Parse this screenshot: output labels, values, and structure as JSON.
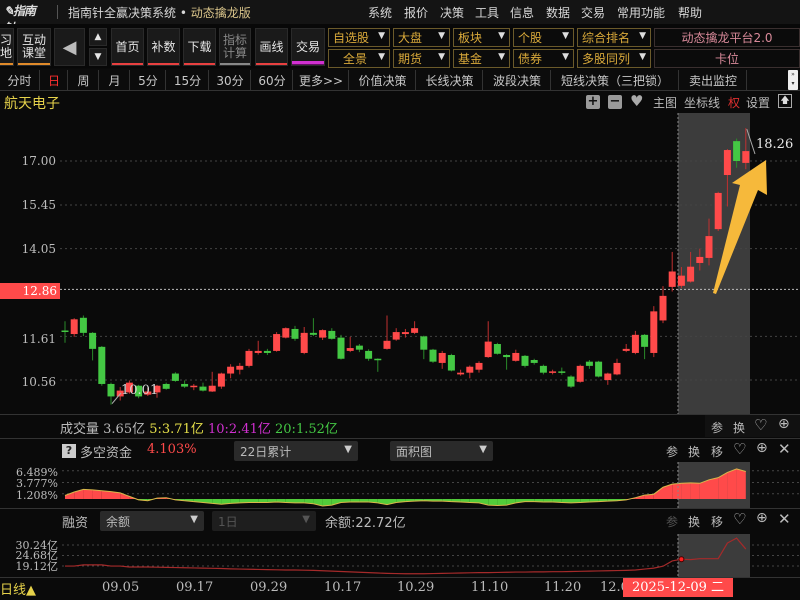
{
  "titlebar": {
    "logo": "指南针",
    "app": "指南针全赢决策系统 • ",
    "edition": "动态擒龙版",
    "menu": [
      "系统",
      "报价",
      "决策",
      "工具",
      "信息",
      "数据",
      "交易",
      "常用功能",
      "帮助"
    ]
  },
  "toolbar": {
    "buttons": [
      {
        "label": "习\n地"
      },
      {
        "label": "互动\n课堂"
      },
      {
        "label": "首页"
      },
      {
        "label": "补数"
      },
      {
        "label": "下载"
      },
      {
        "label": "指标\n计算"
      },
      {
        "label": "画线"
      },
      {
        "label": "交易"
      }
    ],
    "dropdowns_row1": [
      "自选股",
      "大盘",
      "板块",
      "个股",
      "综合排名"
    ],
    "dropdowns_row2": [
      "全景",
      "期货",
      "基金",
      "债券",
      "多股同列"
    ],
    "platform": "动态擒龙平台2.0",
    "kawei": "卡位"
  },
  "period_tabs": [
    {
      "label": "分时"
    },
    {
      "label": "日",
      "active": true
    },
    {
      "label": "周"
    },
    {
      "label": "月"
    },
    {
      "label": "5分"
    },
    {
      "label": "15分"
    },
    {
      "label": "30分"
    },
    {
      "label": "60分"
    },
    {
      "label": "更多>>"
    },
    {
      "label": "价值决策"
    },
    {
      "label": "长线决策"
    },
    {
      "label": "波段决策"
    },
    {
      "label": "短线决策（三把锁）"
    },
    {
      "label": "卖出监控"
    }
  ],
  "chart_header": {
    "stock_name": "航天电子",
    "main": "主图",
    "gridline": "坐标线",
    "rights": "权",
    "settings": "设置"
  },
  "volume": {
    "label": "成交量",
    "value": "3.65亿",
    "ma5": "5:3.71亿",
    "ma10": "10:2.41亿",
    "ma20": "20:1.52亿",
    "btn_param": "参",
    "btn_switch": "换"
  },
  "fund_flow": {
    "label": "多空资金",
    "value": "4.103%",
    "period": "22日累计",
    "style": "面积图",
    "btn_param": "参",
    "btn_switch": "换",
    "btn_move": "移",
    "axis": [
      "6.489%",
      "3.777%",
      "1.208%"
    ]
  },
  "margin": {
    "label": "融资",
    "type": "余额",
    "period": "1日",
    "balance": "余额:22.72亿",
    "btn_param": "参",
    "btn_switch": "换",
    "btn_move": "移",
    "axis": [
      "30.24亿",
      "24.68亿",
      "19.12亿"
    ]
  },
  "date_axis": {
    "period_label": "日线▲",
    "ticks": [
      "09.05",
      "09.17",
      "09.29",
      "10.17",
      "10.29",
      "11.10",
      "11.20",
      "12.01"
    ],
    "selected_date": "2025-12-09 二"
  },
  "colors": {
    "up": "#ff4a4a",
    "down": "#44c844",
    "accent_arrow": "#f6b93b",
    "fund_up": "#ff4a4a",
    "fund_down": "#52cc3a",
    "margin_line": "#a52a2a"
  },
  "chart_data": {
    "type": "candlestick",
    "scale": "log",
    "y_ticks": [
      "17.00",
      "15.45",
      "14.05",
      "11.61",
      "10.56"
    ],
    "current_price": "12.86",
    "high_label": "18.26",
    "low_label": "10.01",
    "ohlc": [
      [
        11.76,
        12.0,
        11.45,
        11.74
      ],
      [
        11.67,
        12.08,
        11.6,
        12.05
      ],
      [
        12.09,
        12.15,
        11.62,
        11.7
      ],
      [
        11.7,
        11.72,
        11.02,
        11.3
      ],
      [
        11.35,
        11.37,
        10.43,
        10.47
      ],
      [
        10.47,
        10.5,
        10.01,
        10.19
      ],
      [
        10.19,
        10.4,
        10.1,
        10.32
      ],
      [
        10.28,
        10.55,
        10.25,
        10.5
      ],
      [
        10.43,
        10.45,
        10.15,
        10.19
      ],
      [
        10.23,
        10.38,
        10.2,
        10.3
      ],
      [
        10.28,
        10.45,
        10.16,
        10.43
      ],
      [
        10.47,
        10.5,
        10.34,
        10.36
      ],
      [
        10.71,
        10.74,
        10.52,
        10.54
      ],
      [
        10.47,
        10.55,
        10.38,
        10.41
      ],
      [
        10.41,
        10.47,
        10.33,
        10.43
      ],
      [
        10.41,
        10.5,
        10.3,
        10.32
      ],
      [
        10.3,
        10.75,
        10.29,
        10.43
      ],
      [
        10.41,
        10.73,
        10.36,
        10.71
      ],
      [
        10.71,
        10.93,
        10.6,
        10.87
      ],
      [
        10.8,
        10.96,
        10.69,
        10.89
      ],
      [
        10.89,
        11.3,
        10.85,
        11.25
      ],
      [
        11.2,
        11.5,
        11.16,
        11.25
      ],
      [
        11.25,
        11.3,
        11.15,
        11.2
      ],
      [
        11.25,
        11.72,
        11.23,
        11.67
      ],
      [
        11.58,
        11.84,
        11.56,
        11.82
      ],
      [
        11.8,
        11.88,
        11.5,
        11.55
      ],
      [
        11.2,
        11.85,
        11.17,
        11.7
      ],
      [
        11.7,
        12.08,
        11.62,
        11.65
      ],
      [
        11.58,
        11.79,
        11.52,
        11.77
      ],
      [
        11.75,
        11.82,
        11.53,
        11.55
      ],
      [
        11.58,
        11.65,
        11.04,
        11.06
      ],
      [
        11.25,
        11.6,
        11.22,
        11.32
      ],
      [
        11.38,
        11.42,
        11.22,
        11.28
      ],
      [
        11.25,
        11.29,
        11.01,
        11.06
      ],
      [
        11.06,
        11.07,
        10.75,
        11.04
      ],
      [
        11.3,
        12.15,
        11.28,
        11.5
      ],
      [
        11.53,
        11.82,
        11.5,
        11.72
      ],
      [
        11.67,
        11.8,
        11.58,
        11.72
      ],
      [
        11.7,
        12.0,
        11.67,
        11.82
      ],
      [
        11.61,
        11.63,
        11.05,
        11.28
      ],
      [
        11.28,
        11.3,
        10.96,
        10.99
      ],
      [
        10.96,
        11.25,
        10.82,
        11.2
      ],
      [
        11.15,
        11.18,
        10.76,
        10.78
      ],
      [
        10.69,
        10.8,
        10.66,
        10.73
      ],
      [
        10.73,
        10.9,
        10.6,
        10.87
      ],
      [
        10.8,
        11.0,
        10.73,
        10.96
      ],
      [
        11.1,
        12.0,
        11.08,
        11.48
      ],
      [
        11.42,
        11.45,
        11.16,
        11.18
      ],
      [
        11.15,
        11.17,
        10.8,
        11.1
      ],
      [
        11.01,
        11.28,
        10.99,
        11.2
      ],
      [
        11.13,
        11.15,
        10.85,
        10.89
      ],
      [
        11.03,
        11.06,
        10.92,
        10.96
      ],
      [
        10.89,
        10.92,
        10.69,
        10.73
      ],
      [
        10.73,
        10.8,
        10.69,
        10.76
      ],
      [
        10.76,
        10.85,
        10.68,
        10.73
      ],
      [
        10.64,
        10.67,
        10.38,
        10.41
      ],
      [
        10.52,
        10.92,
        10.5,
        10.89
      ],
      [
        10.99,
        11.03,
        10.82,
        10.89
      ],
      [
        10.99,
        11.01,
        10.62,
        10.64
      ],
      [
        10.56,
        10.73,
        10.45,
        10.71
      ],
      [
        10.69,
        11.06,
        10.67,
        10.96
      ],
      [
        11.25,
        11.42,
        11.22,
        11.3
      ],
      [
        11.2,
        11.75,
        11.17,
        11.65
      ],
      [
        11.65,
        11.67,
        11.05,
        11.35
      ],
      [
        11.2,
        12.4,
        11.1,
        12.26
      ],
      [
        12.02,
        12.95,
        11.95,
        12.68
      ],
      [
        12.93,
        13.95,
        12.8,
        13.37
      ],
      [
        12.96,
        13.5,
        12.9,
        13.25
      ],
      [
        13.08,
        13.95,
        13.05,
        13.51
      ],
      [
        13.62,
        14.05,
        13.4,
        13.8
      ],
      [
        13.77,
        15.0,
        13.55,
        14.44
      ],
      [
        14.66,
        15.9,
        14.6,
        15.86
      ],
      [
        16.49,
        17.45,
        15.4,
        17.41
      ],
      [
        17.75,
        17.85,
        16.75,
        17.0
      ],
      [
        16.93,
        18.26,
        16.7,
        17.37
      ]
    ],
    "fund_flow_pct": [
      0.8,
      1.6,
      2.2,
      2.1,
      1.9,
      1.7,
      1.4,
      0.6,
      -0.2,
      -0.4,
      0.2,
      0.3,
      -0.2,
      -0.4,
      -0.6,
      -0.8,
      -1.0,
      -1.2,
      -1.0,
      -0.9,
      -0.8,
      -0.8,
      -0.8,
      -0.7,
      -0.8,
      -0.9,
      -0.9,
      -1.1,
      -1.6,
      -1.4,
      -0.8,
      -0.7,
      -0.7,
      -0.7,
      -0.9,
      -1.3,
      -0.8,
      -0.6,
      -0.5,
      -0.4,
      -0.5,
      -0.5,
      -0.6,
      -0.7,
      -0.8,
      -0.9,
      -1.4,
      -1.5,
      -1.4,
      -0.9,
      -0.6,
      -0.6,
      -0.7,
      -0.7,
      -0.8,
      -0.9,
      -0.8,
      -0.7,
      -0.6,
      -0.5,
      -0.4,
      -0.2,
      0.3,
      0.9,
      1.1,
      2.7,
      3.4,
      3.6,
      3.7,
      3.6,
      4.4,
      4.9,
      6.1,
      6.9,
      6.3
    ],
    "margin_balance_yi": [
      19.1,
      19.1,
      19.7,
      19.7,
      19.7,
      19.1,
      19.1,
      18.6,
      18.6,
      18.6,
      18.5,
      18.4,
      18.3,
      18.2,
      18.1,
      18.0,
      17.9,
      17.8,
      17.6,
      17.5,
      17.4,
      17.3,
      17.2,
      17.1,
      17.0,
      17.0,
      16.9,
      16.8,
      16.6,
      16.4,
      16.2,
      16.0,
      15.8,
      15.6,
      15.4,
      15.2,
      15.1,
      15.0,
      15.0,
      15.0,
      15.1,
      15.2,
      15.3,
      15.4,
      15.5,
      15.6,
      15.6,
      15.7,
      15.8,
      15.9,
      15.9,
      16.0,
      16.0,
      16.1,
      16.1,
      16.2,
      16.3,
      16.4,
      16.5,
      16.6,
      16.7,
      16.8,
      17.0,
      17.5,
      18.0,
      19.0,
      21.8,
      22.72,
      22.5,
      23.0,
      23.0,
      23.0,
      31.3,
      33.9,
      28.1
    ]
  }
}
